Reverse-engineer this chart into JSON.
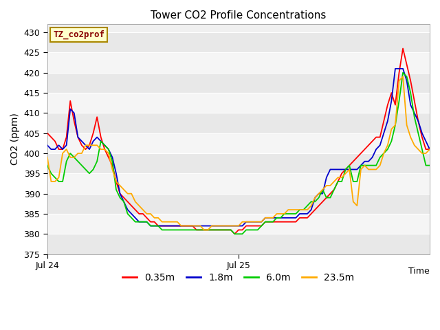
{
  "title": "Tower CO2 Profile Concentrations",
  "ylabel": "CO2 (ppm)",
  "ylim": [
    375,
    432
  ],
  "yticks": [
    375,
    380,
    385,
    390,
    395,
    400,
    405,
    410,
    415,
    420,
    425,
    430
  ],
  "xlim": [
    0,
    100
  ],
  "xtick_positions": [
    0,
    50
  ],
  "xtick_labels": [
    "Jul 24",
    "Jul 25"
  ],
  "time_label": "Time",
  "plot_bg_light": "#f0f0f0",
  "plot_bg_dark": "#dcdcdc",
  "grid_color": "#ffffff",
  "legend_label": "TZ_co2prof",
  "legend_bg": "#ffffcc",
  "legend_border": "#aa8800",
  "legend_text_color": "#880000",
  "series_colors": [
    "#ff0000",
    "#0000cc",
    "#00cc00",
    "#ffaa00"
  ],
  "series_labels": [
    "0.35m",
    "1.8m",
    "6.0m",
    "23.5m"
  ],
  "series_linewidth": 1.3,
  "n_points": 101,
  "red": [
    405,
    404,
    403,
    401,
    401,
    404,
    413,
    408,
    404,
    402,
    401,
    402,
    405,
    409,
    404,
    401,
    399,
    397,
    393,
    390,
    389,
    388,
    387,
    386,
    385,
    385,
    384,
    383,
    383,
    382,
    382,
    382,
    382,
    382,
    382,
    382,
    382,
    382,
    382,
    381,
    381,
    381,
    381,
    381,
    381,
    381,
    381,
    381,
    381,
    380,
    381,
    381,
    382,
    382,
    382,
    382,
    382,
    383,
    383,
    383,
    383,
    383,
    383,
    383,
    383,
    383,
    384,
    384,
    384,
    385,
    386,
    387,
    388,
    389,
    390,
    391,
    393,
    395,
    396,
    397,
    398,
    399,
    400,
    401,
    402,
    403,
    404,
    404,
    408,
    412,
    415,
    412,
    420,
    426,
    422,
    418,
    413,
    408,
    404,
    401,
    401
  ],
  "blue": [
    402,
    401,
    401,
    402,
    401,
    402,
    411,
    410,
    404,
    403,
    402,
    401,
    403,
    404,
    403,
    402,
    401,
    399,
    395,
    390,
    388,
    386,
    385,
    384,
    383,
    383,
    383,
    382,
    382,
    382,
    382,
    382,
    382,
    382,
    382,
    382,
    382,
    382,
    382,
    382,
    382,
    382,
    382,
    382,
    382,
    382,
    382,
    382,
    382,
    382,
    382,
    382,
    383,
    383,
    383,
    383,
    383,
    384,
    384,
    384,
    384,
    384,
    384,
    384,
    384,
    384,
    385,
    385,
    385,
    386,
    389,
    390,
    390,
    394,
    396,
    396,
    396,
    396,
    396,
    396,
    396,
    396,
    397,
    398,
    398,
    399,
    401,
    402,
    405,
    408,
    413,
    421,
    421,
    421,
    418,
    412,
    410,
    408,
    405,
    403,
    401
  ],
  "green": [
    397,
    395,
    394,
    393,
    393,
    398,
    400,
    399,
    398,
    397,
    396,
    395,
    396,
    398,
    403,
    402,
    401,
    398,
    391,
    389,
    388,
    385,
    384,
    383,
    383,
    383,
    383,
    382,
    382,
    382,
    381,
    381,
    381,
    381,
    381,
    381,
    381,
    381,
    381,
    381,
    381,
    381,
    381,
    381,
    381,
    381,
    381,
    381,
    381,
    380,
    380,
    380,
    381,
    381,
    381,
    381,
    382,
    383,
    383,
    383,
    384,
    384,
    385,
    385,
    385,
    385,
    386,
    386,
    387,
    388,
    388,
    389,
    391,
    389,
    389,
    391,
    393,
    393,
    396,
    397,
    393,
    393,
    397,
    397,
    397,
    397,
    397,
    399,
    400,
    401,
    403,
    407,
    413,
    420,
    419,
    415,
    409,
    405,
    401,
    397,
    397
  ],
  "orange": [
    399,
    393,
    393,
    394,
    400,
    401,
    399,
    399,
    400,
    400,
    402,
    402,
    402,
    402,
    401,
    401,
    400,
    396,
    393,
    392,
    391,
    390,
    390,
    388,
    387,
    386,
    385,
    385,
    384,
    384,
    383,
    383,
    383,
    383,
    383,
    382,
    382,
    382,
    382,
    382,
    382,
    381,
    381,
    382,
    382,
    382,
    382,
    382,
    382,
    382,
    382,
    383,
    383,
    383,
    383,
    383,
    383,
    384,
    384,
    384,
    385,
    385,
    385,
    386,
    386,
    386,
    386,
    386,
    386,
    387,
    389,
    390,
    391,
    392,
    392,
    393,
    394,
    394,
    395,
    396,
    388,
    387,
    396,
    397,
    396,
    396,
    396,
    397,
    400,
    402,
    406,
    407,
    418,
    419,
    407,
    404,
    402,
    401,
    400,
    400,
    401
  ]
}
